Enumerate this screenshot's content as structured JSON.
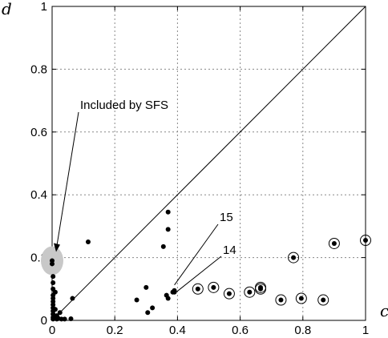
{
  "chart_data": {
    "type": "scatter",
    "xlabel": "c",
    "ylabel": "d",
    "xlim": [
      0,
      1
    ],
    "ylim": [
      0,
      1
    ],
    "x_ticks": [
      "0",
      "0.2",
      "0.4",
      "0.6",
      "0.8",
      "1"
    ],
    "y_ticks": [
      "0",
      "0.2",
      "0.4",
      "0.6",
      "0.8",
      "1"
    ],
    "grid": true,
    "reference_line": {
      "from": [
        0,
        0
      ],
      "to": [
        1,
        1
      ]
    },
    "highlight": {
      "label": "Included by SFS",
      "point": [
        0.0,
        0.19
      ]
    },
    "annotations": [
      {
        "text": "15",
        "point": [
          0.38,
          0.1
        ]
      },
      {
        "text": "14",
        "point": [
          0.38,
          0.085
        ]
      }
    ],
    "points": [
      [
        0.0,
        0.19
      ],
      [
        0.0,
        0.18
      ],
      [
        0.003,
        0.14
      ],
      [
        0.003,
        0.12
      ],
      [
        0.003,
        0.1
      ],
      [
        0.003,
        0.08
      ],
      [
        0.003,
        0.07
      ],
      [
        0.003,
        0.06
      ],
      [
        0.003,
        0.05
      ],
      [
        0.003,
        0.04
      ],
      [
        0.003,
        0.03
      ],
      [
        0.003,
        0.02
      ],
      [
        0.003,
        0.01
      ],
      [
        0.003,
        0.004
      ],
      [
        0.01,
        0.09
      ],
      [
        0.01,
        0.035
      ],
      [
        0.015,
        0.015
      ],
      [
        0.015,
        0.004
      ],
      [
        0.02,
        0.006
      ],
      [
        0.025,
        0.025
      ],
      [
        0.03,
        0.004
      ],
      [
        0.04,
        0.004
      ],
      [
        0.06,
        0.005
      ],
      [
        0.065,
        0.07
      ],
      [
        0.115,
        0.25
      ],
      [
        0.27,
        0.065
      ],
      [
        0.3,
        0.105
      ],
      [
        0.305,
        0.025
      ],
      [
        0.32,
        0.04
      ],
      [
        0.355,
        0.235
      ],
      [
        0.365,
        0.08
      ],
      [
        0.37,
        0.07
      ],
      [
        0.37,
        0.29
      ],
      [
        0.37,
        0.345
      ],
      [
        0.385,
        0.09
      ],
      [
        0.39,
        0.09
      ],
      [
        0.39,
        0.095
      ]
    ],
    "circled_points": [
      [
        0.465,
        0.1
      ],
      [
        0.515,
        0.105
      ],
      [
        0.565,
        0.085
      ],
      [
        0.63,
        0.09
      ],
      [
        0.665,
        0.1
      ],
      [
        0.665,
        0.105
      ],
      [
        0.73,
        0.065
      ],
      [
        0.77,
        0.2
      ],
      [
        0.795,
        0.07
      ],
      [
        0.865,
        0.065
      ],
      [
        0.9,
        0.245
      ],
      [
        1.0,
        0.255
      ]
    ]
  }
}
